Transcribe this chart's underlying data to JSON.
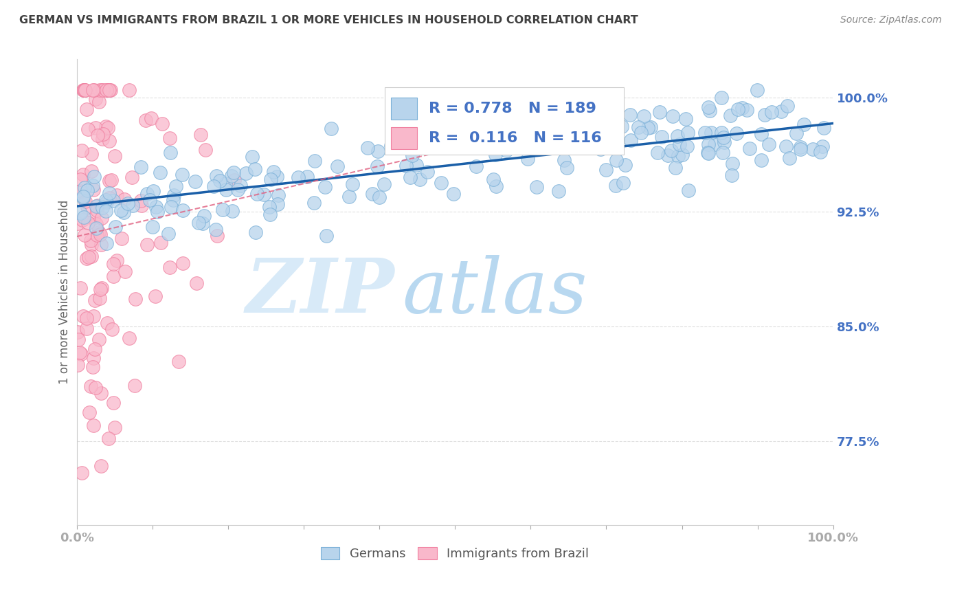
{
  "title": "GERMAN VS IMMIGRANTS FROM BRAZIL 1 OR MORE VEHICLES IN HOUSEHOLD CORRELATION CHART",
  "source": "Source: ZipAtlas.com",
  "ylabel": "1 or more Vehicles in Household",
  "y_ticks_labels": [
    "77.5%",
    "85.0%",
    "92.5%",
    "100.0%"
  ],
  "y_ticks_values": [
    0.775,
    0.85,
    0.925,
    1.0
  ],
  "german_R": 0.778,
  "german_N": 189,
  "brazil_R": 0.116,
  "brazil_N": 116,
  "german_color": "#b8d4ec",
  "german_edge_color": "#7ab0d8",
  "brazil_color": "#f9b8cb",
  "brazil_edge_color": "#f080a0",
  "trendline_german_color": "#1a5fa8",
  "trendline_brazil_color": "#e06080",
  "watermark_zip_color": "#d8eaf8",
  "watermark_atlas_color": "#b8d8f0",
  "background_color": "#ffffff",
  "grid_color": "#d8d8d8",
  "title_color": "#404040",
  "axis_label_color": "#4472c4",
  "legend_R_color": "#4472c4",
  "xlim": [
    0.0,
    1.0
  ],
  "ylim": [
    0.72,
    1.025
  ],
  "seed": 7
}
